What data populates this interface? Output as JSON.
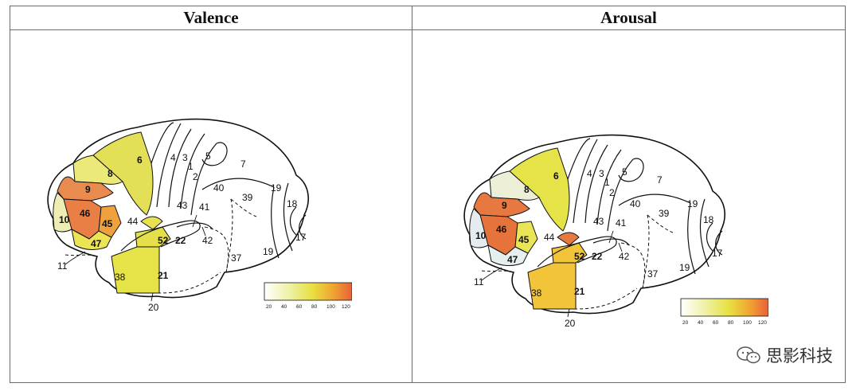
{
  "panels": [
    {
      "title": "Valence",
      "areas": {
        "a4": "4",
        "a3": "3",
        "a1": "1",
        "a2": "2",
        "a5": "5",
        "a7": "7",
        "a6": "6",
        "a8": "8",
        "a9": "9",
        "a10": "10",
        "a46": "46",
        "a45": "45",
        "a44": "44",
        "a47": "47",
        "a11": "11",
        "a43": "43",
        "a40": "40",
        "a39": "39",
        "a41": "41",
        "a42": "42",
        "a52": "52",
        "a22": "22",
        "a21": "21",
        "a38": "38",
        "a20": "20",
        "a37": "37",
        "a19a": "19",
        "a19b": "19",
        "a18": "18",
        "a17": "17"
      },
      "region_colors": {
        "6": "#e3df57",
        "8": "#ebe978",
        "9": "#e98a4e",
        "10": "#eeedb4",
        "46": "#ea7f46",
        "45": "#efa13d",
        "47": "#ece455",
        "52": "#e7e159",
        "22": "#e4df4a",
        "21": "#e6e348",
        "43": "#e8e150"
      },
      "colorbar": {
        "ticks": [
          "20",
          "40",
          "60",
          "80",
          "100",
          "120"
        ]
      }
    },
    {
      "title": "Arousal",
      "areas": {
        "a4": "4",
        "a3": "3",
        "a1": "1",
        "a2": "2",
        "a5": "5",
        "a7": "7",
        "a6": "6",
        "a8": "8",
        "a9": "9",
        "a10": "10",
        "a46": "46",
        "a45": "45",
        "a44": "44",
        "a47": "47",
        "a11": "11",
        "a43": "43",
        "a40": "40",
        "a39": "39",
        "a41": "41",
        "a42": "42",
        "a52": "52",
        "a22": "22",
        "a21": "21",
        "a38": "38",
        "a20": "20",
        "a37": "37",
        "a19a": "19",
        "a19b": "19",
        "a18": "18",
        "a17": "17"
      },
      "region_colors": {
        "6": "#e6e349",
        "8": "#ecefd5",
        "9": "#e7783f",
        "10": "#e4ecf0",
        "46": "#e6733c",
        "45": "#e9e556",
        "47": "#e6eff0",
        "52": "#f2c43a",
        "22": "#f2c43a",
        "21": "#f2c43a",
        "43": "#e67a3e"
      },
      "colorbar": {
        "ticks": [
          "20",
          "40",
          "60",
          "80",
          "100",
          "120"
        ]
      }
    }
  ],
  "watermark": {
    "text": "思影科技",
    "icon": "wechat-icon"
  }
}
